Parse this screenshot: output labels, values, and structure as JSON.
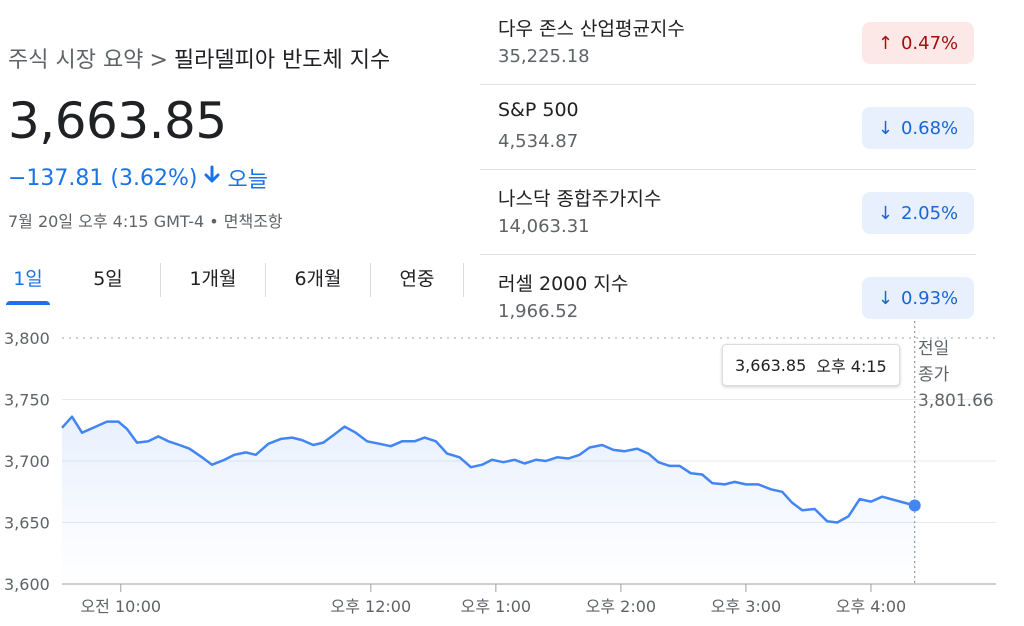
{
  "breadcrumb": {
    "parent": "주식 시장 요약",
    "separator": ">",
    "current": "필라델피아 반도체 지수"
  },
  "quote": {
    "price": "3,663.85",
    "change": "−137.81 (3.62%)",
    "period": "오늘",
    "timestamp": "7월 20일 오후 4:15 GMT-4 • 면책조항"
  },
  "tabs": [
    "1일",
    "5일",
    "1개월",
    "6개월",
    "연중"
  ],
  "active_tab": "1일",
  "indices": [
    {
      "name": "다우 존스 산업평균지수",
      "value": "35,225.18",
      "change": "0.47%",
      "direction": "up",
      "arrow": "↑"
    },
    {
      "name": "S&P 500",
      "value": "4,534.87",
      "change": "0.68%",
      "direction": "down",
      "arrow": "↓"
    },
    {
      "name": "나스닥 종합주가지수",
      "value": "14,063.31",
      "change": "2.05%",
      "direction": "down",
      "arrow": "↓"
    },
    {
      "name": "러셀 2000 지수",
      "value": "1,966.52",
      "change": "0.93%",
      "direction": "down",
      "arrow": "↓"
    }
  ],
  "tooltip": {
    "value": "3,663.85",
    "time": "오후 4:15"
  },
  "prev_close": {
    "label_line1": "전일",
    "label_line2": "종가",
    "value": "3,801.66"
  },
  "colors": {
    "accent": "#1a73e8",
    "line": "#4285f4",
    "up_bg": "#fce8e6",
    "up_fg": "#a50e0e",
    "down_bg": "#e8f0fe",
    "down_fg": "#1967d2"
  },
  "chart_data": {
    "type": "line",
    "title": "",
    "xlabel": "",
    "ylabel": "",
    "ylim": [
      3600,
      3800
    ],
    "yticks": [
      3600,
      3650,
      3700,
      3750,
      3800
    ],
    "ytick_labels": [
      "3,600",
      "3,650",
      "3,700",
      "3,750",
      "3,800"
    ],
    "xticks": [
      {
        "t": 9.75,
        "label": "오전 10:00"
      },
      {
        "t": 11.75,
        "label": "오후 12:00"
      },
      {
        "t": 12.75,
        "label": "오후 1:00"
      },
      {
        "t": 13.75,
        "label": "오후 2:00"
      },
      {
        "t": 14.75,
        "label": "오후 3:00"
      },
      {
        "t": 15.75,
        "label": "오후 4:00"
      }
    ],
    "x_range": [
      9.28,
      16.75
    ],
    "prev_close": 3801.66,
    "grid": true,
    "series": [
      {
        "x": [
          9.28,
          9.36,
          9.44,
          9.55,
          9.64,
          9.73,
          9.8,
          9.88,
          9.97,
          10.05,
          10.13,
          10.22,
          10.3,
          10.4,
          10.48,
          10.58,
          10.66,
          10.75,
          10.83,
          10.93,
          11.03,
          11.12,
          11.2,
          11.29,
          11.37,
          11.45,
          11.54,
          11.63,
          11.72,
          11.82,
          11.91,
          12.0,
          12.1,
          12.18,
          12.27,
          12.36,
          12.46,
          12.55,
          12.64,
          12.72,
          12.81,
          12.9,
          12.98,
          13.07,
          13.15,
          13.24,
          13.33,
          13.42,
          13.5,
          13.6,
          13.69,
          13.78,
          13.88,
          13.97,
          14.05,
          14.14,
          14.22,
          14.31,
          14.4,
          14.48,
          14.58,
          14.66,
          14.75,
          14.85,
          14.95,
          15.04,
          15.12,
          15.2,
          15.3,
          15.4,
          15.48,
          15.57,
          15.66,
          15.75,
          15.84
        ],
        "y": [
          3727,
          3736,
          3723,
          3728,
          3732,
          3732,
          3726,
          3715,
          3716,
          3720,
          3716,
          3713,
          3710,
          3703,
          3697,
          3701,
          3705,
          3707,
          3705,
          3714,
          3718,
          3719,
          3717,
          3713,
          3715,
          3721,
          3728,
          3723,
          3716,
          3714,
          3712,
          3716,
          3716,
          3719,
          3716,
          3706,
          3703,
          3695,
          3697,
          3701,
          3699,
          3701,
          3698,
          3701,
          3700,
          3703,
          3702,
          3705,
          3711,
          3713,
          3709,
          3708,
          3710,
          3706,
          3699,
          3696,
          3696,
          3690,
          3689,
          3682,
          3681,
          3683,
          3681,
          3681,
          3677,
          3675,
          3666,
          3660,
          3661,
          3651,
          3650,
          3655,
          3669,
          3667,
          3671
        ]
      }
    ],
    "current_point": {
      "x": 16.1,
      "y": 3663.85
    }
  }
}
